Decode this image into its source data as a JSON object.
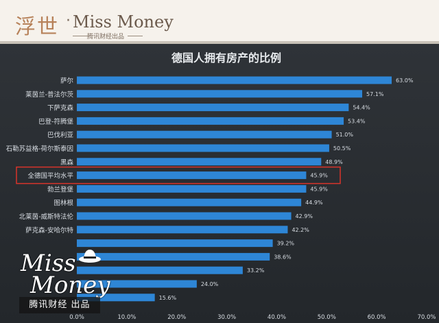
{
  "header": {
    "brand_hanzi": "浮世",
    "brand_dot": "·",
    "brand_en": "Miss Money",
    "brand_sub": "腾讯财经出品"
  },
  "watermark": {
    "script_line1": "Miss",
    "script_line2": "Money",
    "label": "腾讯财经 出品"
  },
  "chart_data": {
    "type": "bar",
    "orientation": "horizontal",
    "title": "德国人拥有房产的比例",
    "categories": [
      "萨尔",
      "莱茵兰-普法尔茨",
      "下萨克森",
      "巴登-符腾堡",
      "巴伐利亚",
      "石勒苏益格-荷尔斯泰因",
      "黑森",
      "全德国平均水平",
      "勃兰登堡",
      "图林根",
      "北莱茵-威斯特法伦",
      "萨克森-安哈尔特",
      "",
      "",
      "",
      "",
      ""
    ],
    "values": [
      63.0,
      57.1,
      54.4,
      53.4,
      51.0,
      50.5,
      48.9,
      45.9,
      45.9,
      44.9,
      42.9,
      42.2,
      39.2,
      38.6,
      33.2,
      24.0,
      15.6
    ],
    "value_labels": [
      "63.0%",
      "57.1%",
      "54.4%",
      "53.4%",
      "51.0%",
      "50.5%",
      "48.9%",
      "45.9%",
      "45.9%",
      "44.9%",
      "42.9%",
      "42.2%",
      "39.2%",
      "38.6%",
      "33.2%",
      "24.0%",
      "15.6%"
    ],
    "highlight_index": 7,
    "xlim": [
      0,
      70
    ],
    "xticks": [
      "0.0%",
      "10.0%",
      "20.0%",
      "30.0%",
      "40.0%",
      "50.0%",
      "60.0%",
      "70.0%"
    ],
    "grid": false,
    "colors": {
      "bar": "#2e86d6",
      "highlight_box": "#d9342b",
      "text": "#d8dde3"
    }
  }
}
